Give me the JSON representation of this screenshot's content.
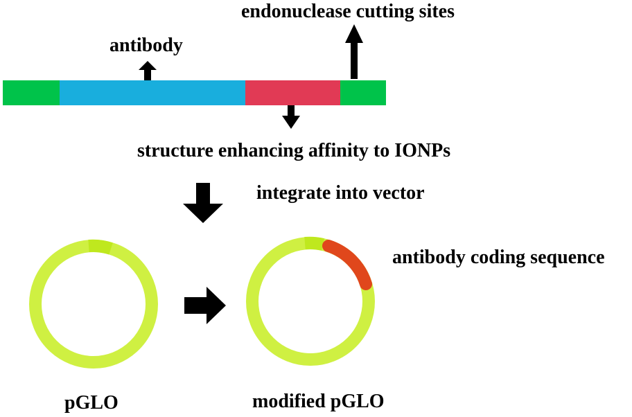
{
  "labels": {
    "endonuclease_sites": "endonuclease cutting sites",
    "antibody": "antibody",
    "structure_affinity": "structure enhancing affinity to IONPs",
    "integrate": "integrate into vector",
    "coding_sequence": "antibody coding sequence",
    "plasmid_original": "pGLO",
    "plasmid_modified": "modified pGLO"
  },
  "colors": {
    "site_segment": "#00c34a",
    "antibody_segment": "#19aedd",
    "affinity_segment": "#e13a55",
    "plasmid_ring": "#cff042",
    "plasmid_ring_highlight": "#bfe81e",
    "insert_segment": "#e0471c",
    "arrow": "#000000"
  }
}
